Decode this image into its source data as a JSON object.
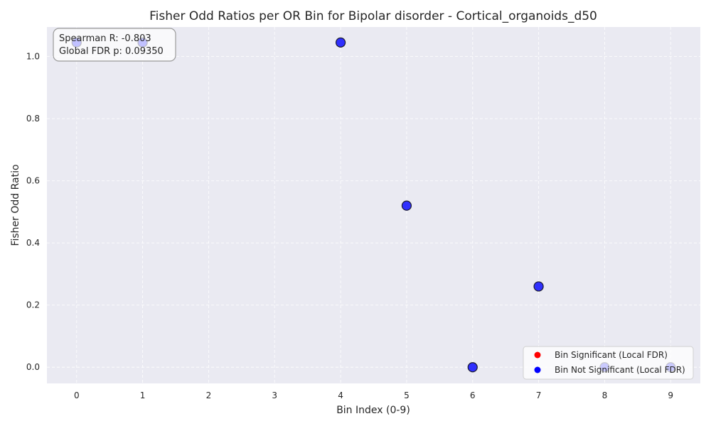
{
  "chart_data": {
    "type": "scatter",
    "title": "Fisher Odd Ratios per OR Bin for Bipolar disorder - Cortical_organoids_d50",
    "xlabel": "Bin Index (0-9)",
    "ylabel": "Fisher Odd Ratio",
    "xlim": [
      -0.45,
      9.45
    ],
    "ylim": [
      -0.052,
      1.095
    ],
    "xticks": [
      "0",
      "1",
      "2",
      "3",
      "4",
      "5",
      "6",
      "7",
      "8",
      "9"
    ],
    "yticks": [
      "0.0",
      "0.2",
      "0.4",
      "0.6",
      "0.8",
      "1.0"
    ],
    "ytick_values": [
      0.0,
      0.2,
      0.4,
      0.6,
      0.8,
      1.0
    ],
    "grid": true,
    "legend_position": "bottom-right",
    "legend": [
      {
        "label": "Bin Significant (Local FDR)",
        "color": "#ff0000"
      },
      {
        "label": "Bin Not Significant (Local FDR)",
        "color": "#0000ff"
      }
    ],
    "annotation": {
      "line1": "Spearman R: -0.803",
      "line2": "Global FDR p: 0.09350"
    },
    "points": [
      {
        "x": 0,
        "y": 1.045
      },
      {
        "x": 1,
        "y": 1.045
      },
      {
        "x": 4,
        "y": 1.045
      },
      {
        "x": 5,
        "y": 0.52
      },
      {
        "x": 6,
        "y": 0.0
      },
      {
        "x": 7,
        "y": 0.26
      },
      {
        "x": 8,
        "y": 0.0
      },
      {
        "x": 9,
        "y": 0.0
      }
    ],
    "colors": {
      "plot_background": "#eaeaf2",
      "point_fill": "#0000ff",
      "point_edge": "#1a1a2e"
    }
  }
}
